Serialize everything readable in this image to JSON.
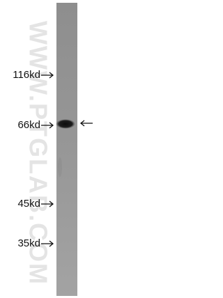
{
  "markers": [
    "116kd",
    "66kd",
    "45kd",
    "35kd"
  ],
  "watermark": "WWW.PTGLAB.COM"
}
